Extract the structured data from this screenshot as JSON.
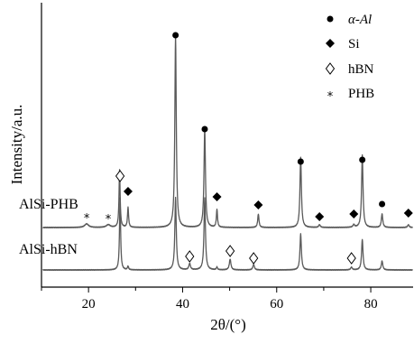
{
  "chart_data": {
    "type": "line",
    "xlabel": "2θ/(°)",
    "ylabel": "Intensity/a.u.",
    "xlim": [
      10,
      89
    ],
    "xticks": [
      20,
      40,
      60,
      80
    ],
    "legend_position": "top-right",
    "legend": [
      {
        "marker": "●",
        "label": "α-Al",
        "phase": "alpha_al"
      },
      {
        "marker": "◆",
        "label": "Si",
        "phase": "si"
      },
      {
        "marker": "◊",
        "label": "hBN",
        "phase": "hbn"
      },
      {
        "marker": "*",
        "label": "PHB",
        "phase": "phb"
      }
    ],
    "series": [
      {
        "name": "AlSi-PHB",
        "baseline": 252,
        "peaks": [
          {
            "x": 19.6,
            "h": 4,
            "w": 0.5
          },
          {
            "x": 24.2,
            "h": 3,
            "w": 0.5
          },
          {
            "x": 26.6,
            "h": 64,
            "w": 0.14
          },
          {
            "x": 28.4,
            "h": 22,
            "w": 0.14
          },
          {
            "x": 38.5,
            "h": 212,
            "w": 0.18
          },
          {
            "x": 44.7,
            "h": 110,
            "w": 0.18
          },
          {
            "x": 47.3,
            "h": 20,
            "w": 0.14
          },
          {
            "x": 56.1,
            "h": 15,
            "w": 0.16
          },
          {
            "x": 65.1,
            "h": 78,
            "w": 0.18
          },
          {
            "x": 69.1,
            "h": 3,
            "w": 0.2
          },
          {
            "x": 76.4,
            "h": 3,
            "w": 0.2
          },
          {
            "x": 78.2,
            "h": 80,
            "w": 0.18
          },
          {
            "x": 82.4,
            "h": 15,
            "w": 0.18
          },
          {
            "x": 88.0,
            "h": 3,
            "w": 0.2
          }
        ]
      },
      {
        "name": "AlSi-hBN",
        "baseline": 299,
        "peaks": [
          {
            "x": 26.7,
            "h": 80,
            "w": 0.14
          },
          {
            "x": 28.4,
            "h": 4,
            "w": 0.14
          },
          {
            "x": 38.5,
            "h": 80,
            "w": 0.18
          },
          {
            "x": 41.5,
            "h": 7,
            "w": 0.2
          },
          {
            "x": 44.7,
            "h": 80,
            "w": 0.18
          },
          {
            "x": 47.3,
            "h": 3,
            "w": 0.14
          },
          {
            "x": 50.1,
            "h": 12,
            "w": 0.2
          },
          {
            "x": 55.1,
            "h": 6,
            "w": 0.2
          },
          {
            "x": 65.1,
            "h": 40,
            "w": 0.18
          },
          {
            "x": 75.9,
            "h": 3,
            "w": 0.2
          },
          {
            "x": 78.2,
            "h": 34,
            "w": 0.18
          },
          {
            "x": 82.4,
            "h": 10,
            "w": 0.18
          }
        ]
      }
    ],
    "annotations": [
      {
        "phase": "alpha_al",
        "x": 38.5,
        "y": 39
      },
      {
        "phase": "alpha_al",
        "x": 44.7,
        "y": 143
      },
      {
        "phase": "alpha_al",
        "x": 65.1,
        "y": 179
      },
      {
        "phase": "alpha_al",
        "x": 78.2,
        "y": 177
      },
      {
        "phase": "alpha_al",
        "x": 82.4,
        "y": 226
      },
      {
        "phase": "si",
        "x": 28.4,
        "y": 212
      },
      {
        "phase": "si",
        "x": 47.3,
        "y": 218
      },
      {
        "phase": "si",
        "x": 56.1,
        "y": 227
      },
      {
        "phase": "si",
        "x": 69.1,
        "y": 240
      },
      {
        "phase": "si",
        "x": 76.4,
        "y": 237
      },
      {
        "phase": "si",
        "x": 88.0,
        "y": 236
      },
      {
        "phase": "hbn",
        "x": 26.7,
        "y": 195
      },
      {
        "phase": "hbn",
        "x": 41.5,
        "y": 284
      },
      {
        "phase": "hbn",
        "x": 50.1,
        "y": 278
      },
      {
        "phase": "hbn",
        "x": 55.1,
        "y": 286
      },
      {
        "phase": "hbn",
        "x": 75.9,
        "y": 286
      },
      {
        "phase": "phb",
        "x": 19.6,
        "y": 242
      },
      {
        "phase": "phb",
        "x": 24.2,
        "y": 243
      }
    ]
  }
}
